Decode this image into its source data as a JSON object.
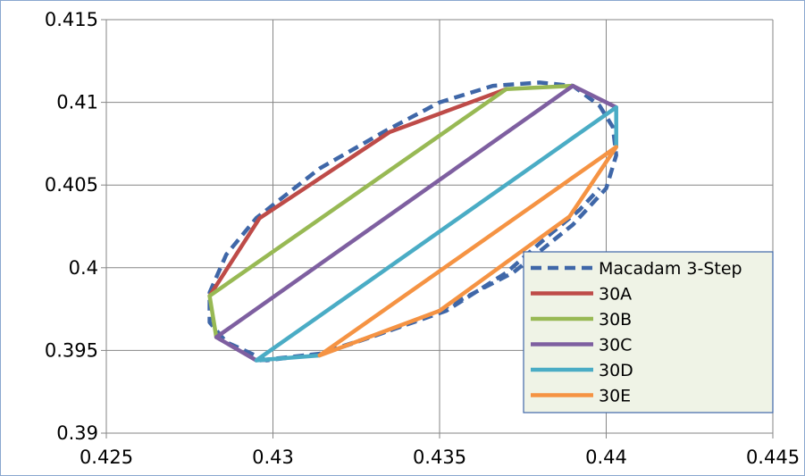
{
  "chart_data": {
    "type": "line",
    "title": "",
    "xlabel": "",
    "ylabel": "",
    "xlim": [
      0.425,
      0.445
    ],
    "ylim": [
      0.39,
      0.415
    ],
    "x_ticks": [
      "0.425",
      "0.43",
      "0.435",
      "0.44",
      "0.445"
    ],
    "y_ticks": [
      "0.39",
      "0.395",
      "0.4",
      "0.405",
      "0.41",
      "0.415"
    ],
    "x_tick_values": [
      0.425,
      0.43,
      0.435,
      0.44,
      0.445
    ],
    "y_tick_values": [
      0.39,
      0.395,
      0.4,
      0.405,
      0.41,
      0.415
    ],
    "grid": true,
    "legend_position": "bottom-right",
    "series": [
      {
        "name": "Macadam 3-Step",
        "color": "#3f67a8",
        "style": "dashed",
        "x": [
          0.4296,
          0.4314,
          0.4335,
          0.435,
          0.4372,
          0.439,
          0.44,
          0.4403,
          0.4402,
          0.4398,
          0.439,
          0.438,
          0.4366,
          0.435,
          0.4334,
          0.4314,
          0.4295,
          0.4286,
          0.4281,
          0.4281,
          0.4286,
          0.4298,
          0.4315,
          0.4335,
          0.4352,
          0.437,
          0.4383,
          0.4392,
          0.4398
        ],
        "y": [
          0.3944,
          0.3948,
          0.3962,
          0.3974,
          0.3997,
          0.4026,
          0.4048,
          0.4068,
          0.4085,
          0.4098,
          0.411,
          0.4112,
          0.411,
          0.41,
          0.4083,
          0.406,
          0.403,
          0.4008,
          0.3985,
          0.3967,
          0.3955,
          0.3944,
          0.3948,
          0.3962,
          0.3974,
          0.3997,
          0.402,
          0.4035,
          0.4048
        ]
      },
      {
        "name": "30A",
        "color": "#be4b48",
        "style": "solid",
        "x": [
          0.4281,
          0.4296,
          0.4335,
          0.437
        ],
        "y": [
          0.3983,
          0.403,
          0.4082,
          0.4108
        ]
      },
      {
        "name": "30B",
        "color": "#98b954",
        "style": "solid",
        "x": [
          0.4283,
          0.4281,
          0.437,
          0.439
        ],
        "y": [
          0.3958,
          0.3983,
          0.4108,
          0.411
        ]
      },
      {
        "name": "30C",
        "color": "#7e5fa0",
        "style": "solid",
        "x": [
          0.4295,
          0.4283,
          0.439,
          0.4403
        ],
        "y": [
          0.3944,
          0.3958,
          0.411,
          0.4097
        ]
      },
      {
        "name": "30D",
        "color": "#4aacc5",
        "style": "solid",
        "x": [
          0.4314,
          0.4295,
          0.4403,
          0.4403
        ],
        "y": [
          0.3947,
          0.3944,
          0.4097,
          0.4073
        ]
      },
      {
        "name": "30E",
        "color": "#f59343",
        "style": "solid",
        "x": [
          0.4314,
          0.4403,
          0.4389,
          0.435,
          0.4314
        ],
        "y": [
          0.3947,
          0.4073,
          0.4031,
          0.3974,
          0.3947
        ]
      }
    ]
  }
}
